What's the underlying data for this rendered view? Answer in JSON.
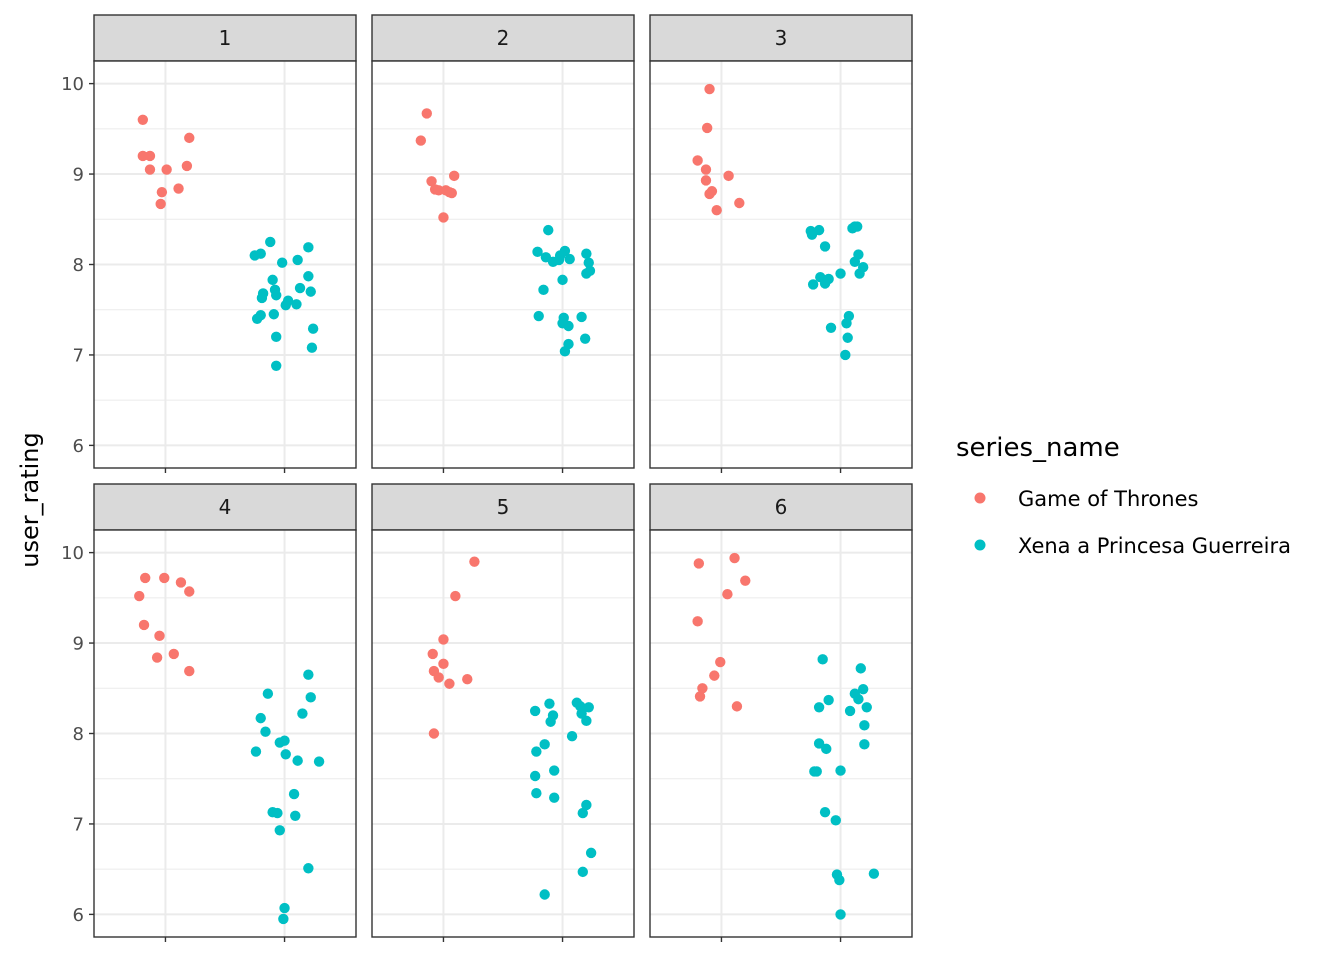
{
  "chart_data": {
    "type": "scatter",
    "facet_variable": "season",
    "facets": [
      "1",
      "2",
      "3",
      "4",
      "5",
      "6"
    ],
    "xlabel": "",
    "ylabel": "user_rating",
    "ylim": [
      5.75,
      10.25
    ],
    "y_ticks": [
      6,
      7,
      8,
      9,
      10
    ],
    "x_categories": [
      "Game of Thrones",
      "Xena a Princesa Guerreira"
    ],
    "x_tick_labels_shown": false,
    "grid": true,
    "theme": "bw",
    "legend": {
      "title": "series_name",
      "position": "right",
      "entries": [
        {
          "name": "Game of Thrones",
          "color": "#F8766D"
        },
        {
          "name": "Xena a Princesa Guerreira",
          "color": "#00BFC4"
        }
      ]
    },
    "series": [
      {
        "name": "Game of Thrones",
        "color": "#F8766D",
        "points": {
          "1": [
            [
              0.81,
              9.6
            ],
            [
              0.81,
              9.2
            ],
            [
              0.87,
              9.2
            ],
            [
              0.87,
              9.05
            ],
            [
              0.97,
              8.8
            ],
            [
              0.96,
              8.67
            ],
            [
              1.01,
              9.05
            ],
            [
              1.11,
              8.84
            ],
            [
              1.18,
              9.09
            ],
            [
              1.2,
              9.4
            ]
          ],
          "2": [
            [
              0.81,
              9.37
            ],
            [
              0.86,
              9.67
            ],
            [
              0.9,
              8.92
            ],
            [
              0.93,
              8.83
            ],
            [
              0.96,
              8.82
            ],
            [
              1.0,
              8.52
            ],
            [
              1.02,
              8.82
            ],
            [
              1.05,
              8.8
            ],
            [
              1.07,
              8.79
            ],
            [
              1.09,
              8.98
            ]
          ],
          "3": [
            [
              0.8,
              9.15
            ],
            [
              0.87,
              9.05
            ],
            [
              0.87,
              8.93
            ],
            [
              0.88,
              9.51
            ],
            [
              0.9,
              9.94
            ],
            [
              0.9,
              8.78
            ],
            [
              0.92,
              8.81
            ],
            [
              0.96,
              8.6
            ],
            [
              1.06,
              8.98
            ],
            [
              1.15,
              8.68
            ]
          ],
          "4": [
            [
              0.78,
              9.52
            ],
            [
              0.83,
              9.72
            ],
            [
              0.82,
              9.2
            ],
            [
              0.95,
              9.08
            ],
            [
              0.93,
              8.84
            ],
            [
              0.99,
              9.72
            ],
            [
              1.07,
              8.88
            ],
            [
              1.13,
              9.67
            ],
            [
              1.2,
              9.57
            ],
            [
              1.2,
              8.69
            ]
          ],
          "5": [
            [
              0.91,
              8.88
            ],
            [
              0.92,
              8.69
            ],
            [
              0.92,
              8.0
            ],
            [
              0.96,
              8.62
            ],
            [
              1.0,
              9.04
            ],
            [
              1.0,
              8.77
            ],
            [
              1.05,
              8.55
            ],
            [
              1.1,
              9.52
            ],
            [
              1.2,
              8.6
            ],
            [
              1.26,
              9.9
            ]
          ],
          "6": [
            [
              0.81,
              9.88
            ],
            [
              0.8,
              9.24
            ],
            [
              0.82,
              8.41
            ],
            [
              0.84,
              8.5
            ],
            [
              0.94,
              8.64
            ],
            [
              0.99,
              8.79
            ],
            [
              1.05,
              9.54
            ],
            [
              1.11,
              9.94
            ],
            [
              1.13,
              8.3
            ],
            [
              1.2,
              9.69
            ]
          ]
        }
      },
      {
        "name": "Xena a Princesa Guerreira",
        "color": "#00BFC4",
        "points": {
          "1": [
            [
              1.75,
              8.1
            ],
            [
              1.8,
              8.12
            ],
            [
              1.82,
              7.68
            ],
            [
              1.77,
              7.4
            ],
            [
              1.8,
              7.44
            ],
            [
              1.81,
              7.63
            ],
            [
              1.88,
              8.25
            ],
            [
              1.9,
              7.83
            ],
            [
              1.91,
              7.45
            ],
            [
              1.92,
              7.72
            ],
            [
              1.93,
              7.66
            ],
            [
              1.93,
              7.2
            ],
            [
              1.93,
              6.88
            ],
            [
              1.98,
              8.02
            ],
            [
              2.01,
              7.55
            ],
            [
              2.03,
              7.6
            ],
            [
              2.1,
              7.56
            ],
            [
              2.11,
              8.05
            ],
            [
              2.13,
              7.74
            ],
            [
              2.2,
              8.19
            ],
            [
              2.2,
              7.87
            ],
            [
              2.22,
              7.7
            ],
            [
              2.24,
              7.29
            ],
            [
              2.23,
              7.08
            ]
          ],
          "2": [
            [
              1.79,
              8.14
            ],
            [
              1.8,
              7.43
            ],
            [
              1.84,
              7.72
            ],
            [
              1.86,
              8.08
            ],
            [
              1.88,
              8.38
            ],
            [
              1.92,
              8.03
            ],
            [
              1.97,
              8.05
            ],
            [
              1.98,
              8.1
            ],
            [
              2.0,
              7.83
            ],
            [
              2.01,
              7.41
            ],
            [
              2.0,
              7.35
            ],
            [
              2.02,
              7.04
            ],
            [
              2.02,
              8.15
            ],
            [
              2.05,
              7.32
            ],
            [
              2.06,
              8.06
            ],
            [
              2.05,
              7.12
            ],
            [
              2.16,
              7.42
            ],
            [
              2.2,
              8.12
            ],
            [
              2.2,
              7.9
            ],
            [
              2.19,
              7.18
            ],
            [
              2.22,
              8.02
            ],
            [
              2.23,
              7.93
            ]
          ],
          "3": [
            [
              1.75,
              8.37
            ],
            [
              1.76,
              8.33
            ],
            [
              1.77,
              7.78
            ],
            [
              1.83,
              7.86
            ],
            [
              1.82,
              8.38
            ],
            [
              1.87,
              8.2
            ],
            [
              1.87,
              7.79
            ],
            [
              1.9,
              7.84
            ],
            [
              1.92,
              7.3
            ],
            [
              2.0,
              7.9
            ],
            [
              2.04,
              7.0
            ],
            [
              2.05,
              7.35
            ],
            [
              2.06,
              7.19
            ],
            [
              2.07,
              7.43
            ],
            [
              2.1,
              8.4
            ],
            [
              2.12,
              8.42
            ],
            [
              2.12,
              8.03
            ],
            [
              2.15,
              8.11
            ],
            [
              2.16,
              7.9
            ],
            [
              2.19,
              7.97
            ],
            [
              2.14,
              8.42
            ]
          ],
          "4": [
            [
              1.76,
              7.8
            ],
            [
              1.8,
              8.17
            ],
            [
              1.84,
              8.02
            ],
            [
              1.86,
              8.44
            ],
            [
              1.9,
              7.13
            ],
            [
              1.94,
              7.12
            ],
            [
              1.96,
              7.9
            ],
            [
              1.96,
              6.93
            ],
            [
              2.0,
              7.92
            ],
            [
              2.01,
              7.77
            ],
            [
              1.99,
              5.95
            ],
            [
              2.0,
              6.07
            ],
            [
              2.09,
              7.09
            ],
            [
              2.08,
              7.33
            ],
            [
              2.11,
              7.7
            ],
            [
              2.15,
              8.22
            ],
            [
              2.22,
              8.4
            ],
            [
              2.2,
              8.65
            ],
            [
              2.2,
              6.51
            ],
            [
              2.29,
              7.69
            ]
          ],
          "5": [
            [
              1.77,
              8.25
            ],
            [
              1.78,
              7.8
            ],
            [
              1.77,
              7.53
            ],
            [
              1.78,
              7.34
            ],
            [
              1.85,
              7.88
            ],
            [
              1.85,
              6.22
            ],
            [
              1.89,
              8.33
            ],
            [
              1.9,
              8.13
            ],
            [
              1.92,
              8.2
            ],
            [
              1.93,
              7.59
            ],
            [
              1.93,
              7.29
            ],
            [
              2.08,
              7.97
            ],
            [
              2.12,
              8.34
            ],
            [
              2.15,
              8.3
            ],
            [
              2.16,
              8.22
            ],
            [
              2.17,
              7.12
            ],
            [
              2.17,
              6.47
            ],
            [
              2.2,
              7.21
            ],
            [
              2.2,
              8.14
            ],
            [
              2.22,
              8.29
            ],
            [
              2.24,
              6.68
            ]
          ],
          "6": [
            [
              1.78,
              7.58
            ],
            [
              1.82,
              8.29
            ],
            [
              1.82,
              7.89
            ],
            [
              1.8,
              7.58
            ],
            [
              1.85,
              8.82
            ],
            [
              1.87,
              7.13
            ],
            [
              1.9,
              8.37
            ],
            [
              1.88,
              7.83
            ],
            [
              1.96,
              7.04
            ],
            [
              1.97,
              6.44
            ],
            [
              1.99,
              6.38
            ],
            [
              2.0,
              7.59
            ],
            [
              2.0,
              6.0
            ],
            [
              2.08,
              8.25
            ],
            [
              2.12,
              8.44
            ],
            [
              2.15,
              8.38
            ],
            [
              2.17,
              8.72
            ],
            [
              2.19,
              8.49
            ],
            [
              2.2,
              7.88
            ],
            [
              2.2,
              8.09
            ],
            [
              2.22,
              8.29
            ],
            [
              2.28,
              6.45
            ]
          ]
        }
      }
    ]
  }
}
